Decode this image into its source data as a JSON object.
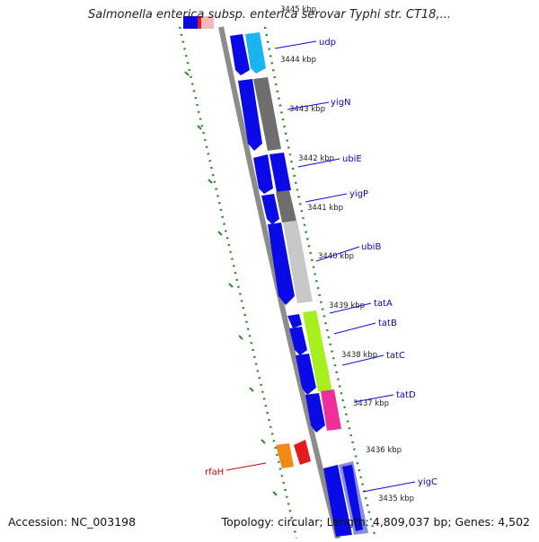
{
  "title": "Salmonella enterica subsp. enterica serovar Typhi str. CT18,...",
  "footer": {
    "accession": "Accession: NC_003198",
    "summary": "Topology: circular; Length: 4,809,037 bp; Genes: 4,502"
  },
  "colors": {
    "backbone": "#8c8c8c",
    "tick_green": "#2e8b2e",
    "forward_gene": "#0a0ae6",
    "gene_label": "#0a0aa8",
    "rfaH_label": "#cc0000"
  },
  "kbp_ticks": [
    "3445 kbp",
    "3444 kbp",
    "3443 kbp",
    "3442 kbp",
    "3441 kbp",
    "3440 kbp",
    "3439 kbp",
    "3438 kbp",
    "3437 kbp",
    "3436 kbp",
    "3435 kbp"
  ],
  "genes": [
    {
      "name": "udp",
      "color": "#1ab4f0"
    },
    {
      "name": "yigN",
      "color": "#6e6e6e"
    },
    {
      "name": "ubiE",
      "color": "#0a0ae6"
    },
    {
      "name": "yigP",
      "color": "#7a7a7a"
    },
    {
      "name": "ubiB",
      "color": "#c8c8c8"
    },
    {
      "name": "tatA",
      "color": "#0a0ae6"
    },
    {
      "name": "tatB",
      "color": "#a6f020"
    },
    {
      "name": "tatC",
      "color": "#0a0ae6"
    },
    {
      "name": "tatD",
      "color": "#f0309a"
    },
    {
      "name": "rfaH",
      "color": "#f08a14"
    },
    {
      "name": "yigC",
      "color": "#8a8ae0"
    }
  ]
}
